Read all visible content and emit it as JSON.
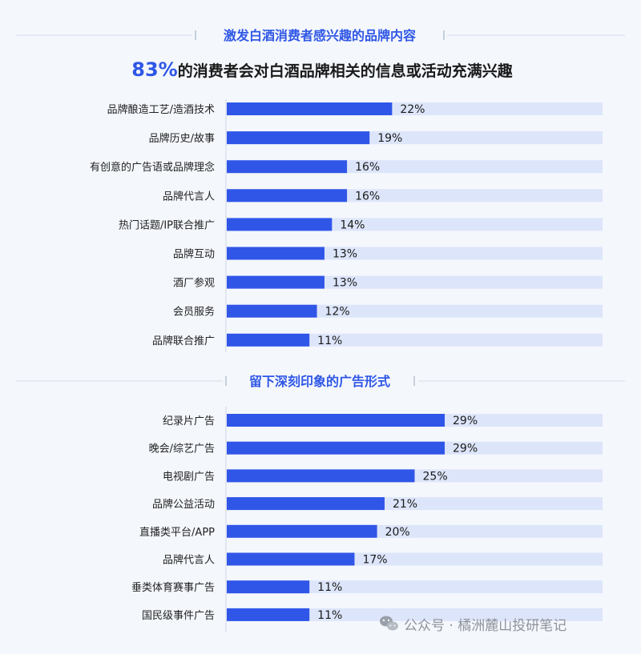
{
  "section1": {
    "title": "激发白酒消费者感兴趣的品牌内容",
    "headline_pct": "83%",
    "headline_text": "的消费者会对白酒品牌相关的信息或活动充满兴趣"
  },
  "section2": {
    "title": "留下深刻印象的广告形式"
  },
  "watermark": {
    "text": "公众号 · 橘洲麓山投研笔记",
    "icon": "wechat-icon"
  },
  "colors": {
    "bar": "#3056e8",
    "track": "#dde5fa",
    "title": "#2f57e6",
    "text": "#222222"
  },
  "chart_data": [
    {
      "type": "bar",
      "orientation": "horizontal",
      "title": "激发白酒消费者感兴趣的品牌内容",
      "categories": [
        "品牌酿造工艺/造酒技术",
        "品牌历史/故事",
        "有创意的广告语或品牌理念",
        "品牌代言人",
        "热门话题/IP联合推广",
        "品牌互动",
        "酒厂参观",
        "会员服务",
        "品牌联合推广"
      ],
      "values": [
        22,
        19,
        16,
        16,
        14,
        13,
        13,
        12,
        11
      ],
      "value_labels": [
        "22%",
        "19%",
        "16%",
        "16%",
        "14%",
        "13%",
        "13%",
        "12%",
        "11%"
      ],
      "unit": "%",
      "xlim": [
        0,
        50
      ]
    },
    {
      "type": "bar",
      "orientation": "horizontal",
      "title": "留下深刻印象的广告形式",
      "categories": [
        "纪录片广告",
        "晚会/综艺广告",
        "电视剧广告",
        "品牌公益活动",
        "直播类平台/APP",
        "品牌代言人",
        "垂类体育赛事广告",
        "国民级事件广告"
      ],
      "values": [
        29,
        29,
        25,
        21,
        20,
        17,
        11,
        11
      ],
      "value_labels": [
        "29%",
        "29%",
        "25%",
        "21%",
        "20%",
        "17%",
        "11%",
        "11%"
      ],
      "unit": "%",
      "xlim": [
        0,
        50
      ]
    }
  ]
}
